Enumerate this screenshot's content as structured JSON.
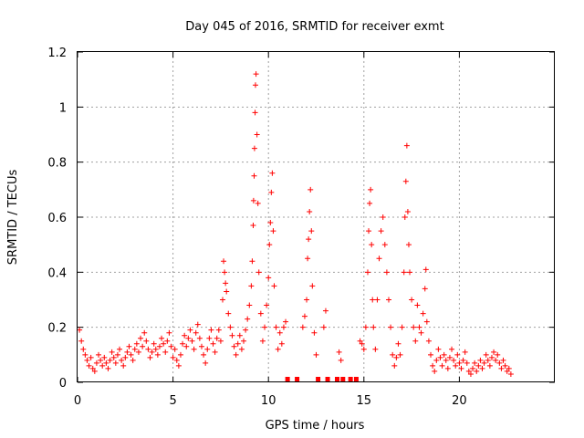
{
  "chart_data": {
    "type": "scatter",
    "title": "Day 045 of 2016, SRMTID for receiver exmt",
    "xlabel": "GPS time / hours",
    "ylabel": "SRMTID / TECUs",
    "xlim": [
      0,
      25
    ],
    "ylim": [
      0,
      1.2
    ],
    "xticks": [
      0,
      5,
      10,
      15,
      20
    ],
    "xtick_labels": [
      "0",
      "5",
      "10",
      "15",
      "20"
    ],
    "yticks": [
      0,
      0.2,
      0.4,
      0.6,
      0.8,
      1.0,
      1.2
    ],
    "ytick_labels": [
      "0",
      "0.2",
      "0.4",
      "0.6",
      "0.8",
      "1",
      "1.2"
    ],
    "grid": true,
    "series": [
      {
        "name": "SRMTID",
        "marker": "+",
        "color": "#ff0000",
        "points": [
          [
            0.1,
            0.19
          ],
          [
            0.2,
            0.15
          ],
          [
            0.3,
            0.12
          ],
          [
            0.4,
            0.1
          ],
          [
            0.5,
            0.08
          ],
          [
            0.6,
            0.06
          ],
          [
            0.7,
            0.09
          ],
          [
            0.8,
            0.05
          ],
          [
            0.9,
            0.04
          ],
          [
            1.0,
            0.07
          ],
          [
            1.1,
            0.1
          ],
          [
            1.2,
            0.08
          ],
          [
            1.3,
            0.06
          ],
          [
            1.4,
            0.09
          ],
          [
            1.5,
            0.07
          ],
          [
            1.6,
            0.05
          ],
          [
            1.7,
            0.08
          ],
          [
            1.8,
            0.11
          ],
          [
            1.9,
            0.09
          ],
          [
            2.0,
            0.07
          ],
          [
            2.1,
            0.1
          ],
          [
            2.2,
            0.12
          ],
          [
            2.3,
            0.08
          ],
          [
            2.4,
            0.06
          ],
          [
            2.5,
            0.09
          ],
          [
            2.6,
            0.11
          ],
          [
            2.7,
            0.13
          ],
          [
            2.8,
            0.1
          ],
          [
            2.9,
            0.08
          ],
          [
            3.0,
            0.12
          ],
          [
            3.1,
            0.14
          ],
          [
            3.2,
            0.11
          ],
          [
            3.3,
            0.16
          ],
          [
            3.4,
            0.13
          ],
          [
            3.5,
            0.18
          ],
          [
            3.6,
            0.15
          ],
          [
            3.7,
            0.12
          ],
          [
            3.8,
            0.09
          ],
          [
            3.9,
            0.11
          ],
          [
            4.0,
            0.14
          ],
          [
            4.1,
            0.12
          ],
          [
            4.2,
            0.1
          ],
          [
            4.3,
            0.13
          ],
          [
            4.4,
            0.16
          ],
          [
            4.5,
            0.14
          ],
          [
            4.6,
            0.11
          ],
          [
            4.7,
            0.15
          ],
          [
            4.8,
            0.18
          ],
          [
            4.9,
            0.13
          ],
          [
            5.0,
            0.09
          ],
          [
            5.1,
            0.12
          ],
          [
            5.2,
            0.08
          ],
          [
            5.3,
            0.06
          ],
          [
            5.4,
            0.1
          ],
          [
            5.5,
            0.14
          ],
          [
            5.6,
            0.17
          ],
          [
            5.7,
            0.13
          ],
          [
            5.8,
            0.16
          ],
          [
            5.9,
            0.19
          ],
          [
            6.0,
            0.15
          ],
          [
            6.1,
            0.12
          ],
          [
            6.2,
            0.18
          ],
          [
            6.3,
            0.21
          ],
          [
            6.4,
            0.16
          ],
          [
            6.5,
            0.13
          ],
          [
            6.6,
            0.1
          ],
          [
            6.7,
            0.07
          ],
          [
            6.8,
            0.12
          ],
          [
            6.9,
            0.16
          ],
          [
            7.0,
            0.19
          ],
          [
            7.1,
            0.14
          ],
          [
            7.2,
            0.11
          ],
          [
            7.3,
            0.16
          ],
          [
            7.4,
            0.19
          ],
          [
            7.5,
            0.15
          ],
          [
            7.6,
            0.3
          ],
          [
            7.65,
            0.44
          ],
          [
            7.7,
            0.4
          ],
          [
            7.75,
            0.36
          ],
          [
            7.8,
            0.33
          ],
          [
            7.9,
            0.25
          ],
          [
            8.0,
            0.2
          ],
          [
            8.1,
            0.17
          ],
          [
            8.2,
            0.13
          ],
          [
            8.3,
            0.1
          ],
          [
            8.4,
            0.14
          ],
          [
            8.5,
            0.17
          ],
          [
            8.6,
            0.12
          ],
          [
            8.7,
            0.15
          ],
          [
            8.8,
            0.19
          ],
          [
            8.9,
            0.23
          ],
          [
            9.0,
            0.28
          ],
          [
            9.1,
            0.35
          ],
          [
            9.15,
            0.44
          ],
          [
            9.2,
            0.57
          ],
          [
            9.22,
            0.66
          ],
          [
            9.25,
            0.75
          ],
          [
            9.27,
            0.85
          ],
          [
            9.3,
            0.98
          ],
          [
            9.32,
            1.08
          ],
          [
            9.35,
            1.12
          ],
          [
            9.4,
            0.9
          ],
          [
            9.45,
            0.65
          ],
          [
            9.5,
            0.4
          ],
          [
            9.6,
            0.25
          ],
          [
            9.7,
            0.15
          ],
          [
            9.8,
            0.2
          ],
          [
            9.9,
            0.28
          ],
          [
            10.0,
            0.38
          ],
          [
            10.05,
            0.5
          ],
          [
            10.1,
            0.58
          ],
          [
            10.15,
            0.69
          ],
          [
            10.2,
            0.76
          ],
          [
            10.25,
            0.55
          ],
          [
            10.3,
            0.35
          ],
          [
            10.4,
            0.2
          ],
          [
            10.5,
            0.12
          ],
          [
            10.6,
            0.18
          ],
          [
            10.7,
            0.14
          ],
          [
            10.8,
            0.2
          ],
          [
            10.9,
            0.22
          ],
          [
            11.0,
            0.01
          ],
          [
            11.5,
            0.01
          ],
          [
            11.8,
            0.2
          ],
          [
            11.9,
            0.24
          ],
          [
            12.0,
            0.3
          ],
          [
            12.05,
            0.45
          ],
          [
            12.1,
            0.52
          ],
          [
            12.15,
            0.62
          ],
          [
            12.2,
            0.7
          ],
          [
            12.25,
            0.55
          ],
          [
            12.3,
            0.35
          ],
          [
            12.4,
            0.18
          ],
          [
            12.5,
            0.1
          ],
          [
            12.6,
            0.01
          ],
          [
            12.9,
            0.2
          ],
          [
            13.0,
            0.26
          ],
          [
            13.1,
            0.01
          ],
          [
            13.6,
            0.01
          ],
          [
            13.7,
            0.11
          ],
          [
            13.8,
            0.08
          ],
          [
            13.9,
            0.01
          ],
          [
            14.3,
            0.01
          ],
          [
            14.6,
            0.01
          ],
          [
            14.8,
            0.15
          ],
          [
            14.9,
            0.14
          ],
          [
            15.0,
            0.12
          ],
          [
            15.1,
            0.2
          ],
          [
            15.2,
            0.4
          ],
          [
            15.25,
            0.55
          ],
          [
            15.3,
            0.65
          ],
          [
            15.35,
            0.7
          ],
          [
            15.4,
            0.5
          ],
          [
            15.45,
            0.3
          ],
          [
            15.5,
            0.2
          ],
          [
            15.6,
            0.12
          ],
          [
            15.7,
            0.3
          ],
          [
            15.8,
            0.45
          ],
          [
            15.9,
            0.55
          ],
          [
            16.0,
            0.6
          ],
          [
            16.1,
            0.5
          ],
          [
            16.2,
            0.4
          ],
          [
            16.3,
            0.3
          ],
          [
            16.4,
            0.2
          ],
          [
            16.5,
            0.1
          ],
          [
            16.6,
            0.06
          ],
          [
            16.7,
            0.09
          ],
          [
            16.8,
            0.14
          ],
          [
            16.9,
            0.1
          ],
          [
            17.0,
            0.2
          ],
          [
            17.1,
            0.4
          ],
          [
            17.15,
            0.6
          ],
          [
            17.2,
            0.73
          ],
          [
            17.25,
            0.86
          ],
          [
            17.3,
            0.62
          ],
          [
            17.35,
            0.5
          ],
          [
            17.4,
            0.4
          ],
          [
            17.5,
            0.3
          ],
          [
            17.6,
            0.2
          ],
          [
            17.7,
            0.15
          ],
          [
            17.8,
            0.28
          ],
          [
            17.9,
            0.2
          ],
          [
            18.0,
            0.18
          ],
          [
            18.1,
            0.25
          ],
          [
            18.2,
            0.34
          ],
          [
            18.25,
            0.41
          ],
          [
            18.3,
            0.22
          ],
          [
            18.4,
            0.15
          ],
          [
            18.5,
            0.1
          ],
          [
            18.6,
            0.06
          ],
          [
            18.7,
            0.04
          ],
          [
            18.8,
            0.08
          ],
          [
            18.9,
            0.12
          ],
          [
            19.0,
            0.09
          ],
          [
            19.1,
            0.06
          ],
          [
            19.2,
            0.1
          ],
          [
            19.3,
            0.08
          ],
          [
            19.4,
            0.05
          ],
          [
            19.5,
            0.09
          ],
          [
            19.6,
            0.12
          ],
          [
            19.7,
            0.08
          ],
          [
            19.8,
            0.06
          ],
          [
            19.9,
            0.1
          ],
          [
            20.0,
            0.07
          ],
          [
            20.1,
            0.05
          ],
          [
            20.2,
            0.08
          ],
          [
            20.3,
            0.11
          ],
          [
            20.4,
            0.07
          ],
          [
            20.5,
            0.04
          ],
          [
            20.6,
            0.03
          ],
          [
            20.7,
            0.05
          ],
          [
            20.8,
            0.07
          ],
          [
            20.9,
            0.04
          ],
          [
            21.0,
            0.06
          ],
          [
            21.1,
            0.08
          ],
          [
            21.2,
            0.05
          ],
          [
            21.3,
            0.07
          ],
          [
            21.4,
            0.1
          ],
          [
            21.5,
            0.08
          ],
          [
            21.6,
            0.06
          ],
          [
            21.7,
            0.09
          ],
          [
            21.8,
            0.11
          ],
          [
            21.9,
            0.08
          ],
          [
            22.0,
            0.1
          ],
          [
            22.1,
            0.07
          ],
          [
            22.2,
            0.05
          ],
          [
            22.3,
            0.08
          ],
          [
            22.4,
            0.06
          ],
          [
            22.5,
            0.04
          ],
          [
            22.6,
            0.05
          ],
          [
            22.7,
            0.03
          ]
        ]
      }
    ]
  }
}
